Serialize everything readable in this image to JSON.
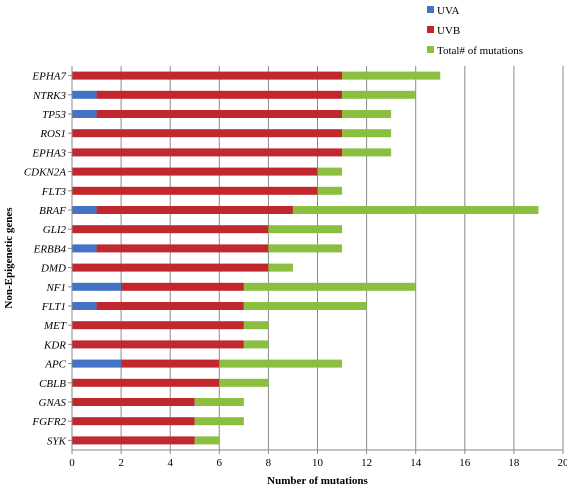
{
  "chart_data": {
    "type": "bar",
    "orientation": "horizontal",
    "stacked": true,
    "xlabel": "Number of mutations",
    "ylabel": "Non-Epigenetic genes",
    "xlim": [
      0,
      20
    ],
    "xticks": [
      0,
      2,
      4,
      6,
      8,
      10,
      12,
      14,
      16,
      18,
      20
    ],
    "grid": "vertical",
    "legend_position": "top-right",
    "categories": [
      "EPHA7",
      "NTRK3",
      "TP53",
      "ROS1",
      "EPHA3",
      "CDKN2A",
      "FLT3",
      "BRAF",
      "GLI2",
      "ERBB4",
      "DMD",
      "NF1",
      "FLT1",
      "MET",
      "KDR",
      "APC",
      "CBLB",
      "GNAS",
      "FGFR2",
      "SYK"
    ],
    "series": [
      {
        "name": "UVA",
        "color": "#4472c4",
        "values": [
          0,
          1,
          1,
          0,
          0,
          0,
          0,
          1,
          0,
          1,
          0,
          2,
          1,
          0,
          0,
          2,
          0,
          0,
          0,
          0
        ]
      },
      {
        "name": "UVB",
        "color": "#c0282d",
        "values": [
          11,
          10,
          10,
          11,
          11,
          10,
          10,
          8,
          8,
          7,
          8,
          5,
          6,
          7,
          7,
          4,
          6,
          5,
          5,
          5
        ]
      },
      {
        "name": "Total# of mutations",
        "color": "#8cbf3f",
        "values": [
          4,
          3,
          2,
          2,
          2,
          1,
          1,
          10,
          3,
          3,
          1,
          7,
          5,
          1,
          1,
          5,
          2,
          2,
          2,
          1
        ]
      }
    ]
  }
}
